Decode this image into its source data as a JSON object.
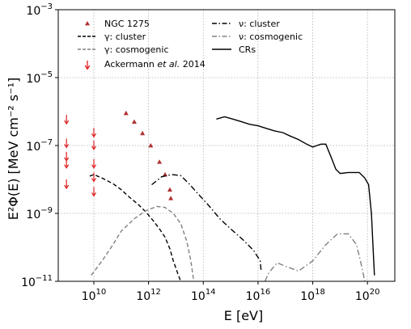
{
  "chart_data": {
    "type": "line",
    "title": "",
    "xlabel": "E [eV]",
    "ylabel": "E²Φ(E) [MeV cm⁻² s⁻¹]",
    "xscale": "log",
    "yscale": "log",
    "xlim": [
      500000000.0,
      1e+21
    ],
    "ylim": [
      1e-11,
      0.001
    ],
    "grid": true,
    "legend_position": "top",
    "x_ticks": [
      {
        "value": 10000000000.0,
        "label": "10",
        "exp": "10"
      },
      {
        "value": 1000000000000.0,
        "label": "10",
        "exp": "12"
      },
      {
        "value": 100000000000000.0,
        "label": "10",
        "exp": "14"
      },
      {
        "value": 1e+16,
        "label": "10",
        "exp": "16"
      },
      {
        "value": 1e+18,
        "label": "10",
        "exp": "18"
      },
      {
        "value": 1e+20,
        "label": "10",
        "exp": "20"
      }
    ],
    "y_ticks": [
      {
        "value": 1e-11,
        "label": "10",
        "exp": "−11"
      },
      {
        "value": 1e-09,
        "label": "10",
        "exp": "−9"
      },
      {
        "value": 1e-07,
        "label": "10",
        "exp": "−7"
      },
      {
        "value": 1e-05,
        "label": "10",
        "exp": "−5"
      },
      {
        "value": 0.001,
        "label": "10",
        "exp": "−3"
      }
    ],
    "legend": [
      {
        "name": "NGC 1275",
        "marker": "triangle",
        "color": "#b03030"
      },
      {
        "name": "γ: cluster",
        "style": "dashed",
        "color": "#000000"
      },
      {
        "name": "γ: cosmogenic",
        "style": "dashed",
        "color": "#808080"
      },
      {
        "name_prefix": "Ackermann ",
        "name_italic": "et al.",
        "name_suffix": " 2014",
        "marker": "arrow-down",
        "color": "#e02020"
      },
      {
        "name": "ν: cluster",
        "style": "dashdot",
        "color": "#000000"
      },
      {
        "name": "ν: cosmogenic",
        "style": "dashdot",
        "color": "#808080"
      },
      {
        "name": "CRs",
        "style": "solid",
        "color": "#000000"
      }
    ],
    "series": [
      {
        "name": "NGC 1275",
        "kind": "scatter",
        "marker": "triangle",
        "color": "#b03030",
        "points": [
          [
            150000000000.0,
            9e-07
          ],
          [
            300000000000.0,
            5e-07
          ],
          [
            600000000000.0,
            2.3e-07
          ],
          [
            1200000000000.0,
            1e-07
          ],
          [
            2500000000000.0,
            3.3e-08
          ],
          [
            4000000000000.0,
            1.4e-08
          ],
          [
            6000000000000.0,
            5e-09
          ],
          [
            6500000000000.0,
            2.8e-09
          ]
        ]
      },
      {
        "name": "Ackermann et al. 2014",
        "kind": "upper-limits",
        "color": "#e02020",
        "points": [
          [
            1000000000.0,
            8e-07
          ],
          [
            1000000000.0,
            1.6e-07
          ],
          [
            1000000000.0,
            6.5e-08
          ],
          [
            1000000000.0,
            4e-08
          ],
          [
            1000000000.0,
            1e-08
          ],
          [
            10000000000.0,
            3.3e-07
          ],
          [
            10000000000.0,
            1.4e-07
          ],
          [
            10000000000.0,
            4e-08
          ],
          [
            10000000000.0,
            1.6e-08
          ],
          [
            10000000000.0,
            6e-09
          ]
        ]
      },
      {
        "name": "γ: cluster",
        "kind": "line",
        "style": "dashed",
        "color": "#000000",
        "points": [
          [
            7000000000.0,
            1.25e-08
          ],
          [
            10000000000.0,
            1.4e-08
          ],
          [
            20000000000.0,
            1.1e-08
          ],
          [
            50000000000.0,
            7.5e-09
          ],
          [
            100000000000.0,
            5e-09
          ],
          [
            200000000000.0,
            3e-09
          ],
          [
            400000000000.0,
            1.9e-09
          ],
          [
            800000000000.0,
            1.1e-09
          ],
          [
            1500000000000.0,
            6e-10
          ],
          [
            2500000000000.0,
            3.5e-10
          ],
          [
            4000000000000.0,
            2e-10
          ],
          [
            6000000000000.0,
            9e-11
          ],
          [
            8000000000000.0,
            4e-11
          ],
          [
            12000000000000.0,
            1.6e-11
          ],
          [
            15000000000000.0,
            1e-11
          ]
        ]
      },
      {
        "name": "γ: cosmogenic",
        "kind": "line",
        "style": "dashed",
        "color": "#808080",
        "points": [
          [
            8000000000.0,
            1.5e-11
          ],
          [
            20000000000.0,
            4e-11
          ],
          [
            50000000000.0,
            1.2e-10
          ],
          [
            100000000000.0,
            3e-10
          ],
          [
            300000000000.0,
            7e-10
          ],
          [
            800000000000.0,
            1.2e-09
          ],
          [
            2000000000000.0,
            1.6e-09
          ],
          [
            4000000000000.0,
            1.5e-09
          ],
          [
            8000000000000.0,
            1e-09
          ],
          [
            15000000000000.0,
            5e-10
          ],
          [
            25000000000000.0,
            1.5e-10
          ],
          [
            35000000000000.0,
            4e-11
          ],
          [
            45000000000000.0,
            1e-11
          ]
        ]
      },
      {
        "name": "ν: cluster",
        "kind": "line",
        "style": "dashdot",
        "color": "#000000",
        "points": [
          [
            1300000000000.0,
            7e-09
          ],
          [
            3000000000000.0,
            1.2e-08
          ],
          [
            7000000000000.0,
            1.4e-08
          ],
          [
            15000000000000.0,
            1.3e-08
          ],
          [
            30000000000000.0,
            7.5e-09
          ],
          [
            60000000000000.0,
            4e-09
          ],
          [
            150000000000000.0,
            1.8e-09
          ],
          [
            400000000000000.0,
            7e-10
          ],
          [
            1000000000000000.0,
            3.5e-10
          ],
          [
            3000000000000000.0,
            1.6e-10
          ],
          [
            7000000000000000.0,
            8e-11
          ],
          [
            1.2e+16,
            4e-11
          ],
          [
            1.3e+16,
            2e-11
          ]
        ]
      },
      {
        "name": "ν: cosmogenic",
        "kind": "line",
        "style": "dashdot",
        "color": "#808080",
        "points": [
          [
            1.8e+16,
            1e-11
          ],
          [
            2.5e+16,
            1.8e-11
          ],
          [
            5e+16,
            3.5e-11
          ],
          [
            1e+17,
            2.8e-11
          ],
          [
            3e+17,
            2e-11
          ],
          [
            1e+18,
            4e-11
          ],
          [
            3e+18,
            1.2e-10
          ],
          [
            8e+18,
            2.5e-10
          ],
          [
            2e+19,
            2.5e-10
          ],
          [
            4e+19,
            1.2e-10
          ],
          [
            6e+19,
            3e-11
          ],
          [
            8e+19,
            1e-11
          ]
        ]
      },
      {
        "name": "CRs",
        "kind": "line",
        "style": "solid",
        "color": "#000000",
        "points": [
          [
            300000000000000.0,
            6e-07
          ],
          [
            600000000000000.0,
            7e-07
          ],
          [
            1200000000000000.0,
            6e-07
          ],
          [
            2500000000000000.0,
            5e-07
          ],
          [
            5000000000000000.0,
            4.2e-07
          ],
          [
            1e+16,
            3.8e-07
          ],
          [
            2e+16,
            3.2e-07
          ],
          [
            4e+16,
            2.7e-07
          ],
          [
            8e+16,
            2.4e-07
          ],
          [
            1.5e+17,
            1.9e-07
          ],
          [
            3e+17,
            1.5e-07
          ],
          [
            6e+17,
            1.1e-07
          ],
          [
            1e+18,
            9e-08
          ],
          [
            2e+18,
            1.1e-07
          ],
          [
            3e+18,
            1.1e-07
          ],
          [
            5e+18,
            4e-08
          ],
          [
            7e+18,
            2e-08
          ],
          [
            1e+19,
            1.5e-08
          ],
          [
            2e+19,
            1.6e-08
          ],
          [
            3e+19,
            1.6e-08
          ],
          [
            5e+19,
            1.6e-08
          ],
          [
            8e+19,
            1.1e-08
          ],
          [
            1.1e+20,
            7e-09
          ],
          [
            1.4e+20,
            1e-09
          ],
          [
            1.6e+20,
            1e-10
          ],
          [
            1.8e+20,
            1.5e-11
          ]
        ]
      }
    ]
  }
}
